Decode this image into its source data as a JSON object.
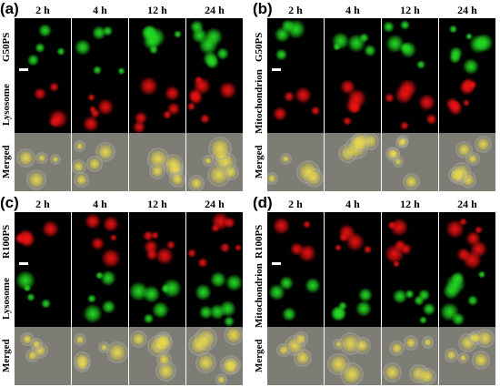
{
  "panels": [
    {
      "letter": "(a)",
      "stain": "G50PS",
      "organelle": "Lysosome",
      "merged": "Merged",
      "times": [
        "2 h",
        "4 h",
        "12 h",
        "24 h"
      ],
      "row1_color": "#22dd22",
      "row2_color": "#ee1111"
    },
    {
      "letter": "(b)",
      "stain": "G50PS",
      "organelle": "Mitochondrion",
      "merged": "Merged",
      "times": [
        "2 h",
        "4 h",
        "12 h",
        "24 h"
      ],
      "row1_color": "#22dd22",
      "row2_color": "#ee1111"
    },
    {
      "letter": "(c)",
      "stain": "R100PS",
      "organelle": "Lysosome",
      "merged": "Merged",
      "times": [
        "2 h",
        "4 h",
        "12 h",
        "24 h"
      ],
      "row1_color": "#ee1111",
      "row2_color": "#22dd22"
    },
    {
      "letter": "(d)",
      "stain": "R100PS",
      "organelle": "Mitochondrion",
      "merged": "Merged",
      "times": [
        "2 h",
        "4 h",
        "12 h",
        "24 h"
      ],
      "row1_color": "#ee1111",
      "row2_color": "#22dd22"
    }
  ],
  "colors": {
    "green": "#22dd22",
    "red": "#ee1111",
    "yellow": "#e8d84a",
    "merged_bg": "#7d7d75"
  }
}
